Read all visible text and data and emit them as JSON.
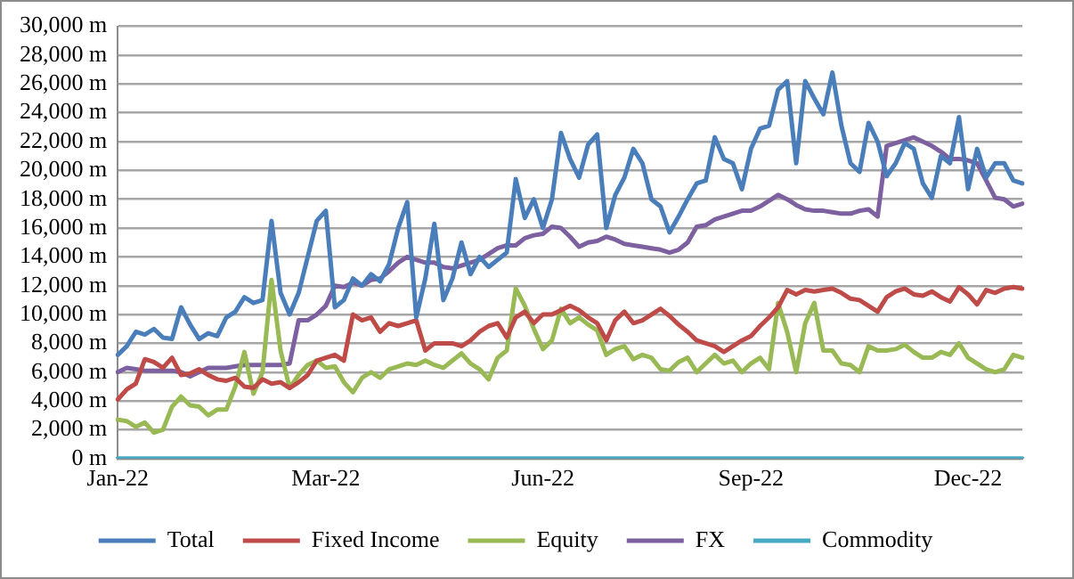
{
  "chart_data": {
    "type": "line",
    "categories": [
      "Jan-22",
      null,
      null,
      null,
      null,
      null,
      null,
      null,
      null,
      null,
      null,
      null,
      null,
      null,
      null,
      null,
      null,
      null,
      null,
      null,
      null,
      null,
      null,
      "Mar-22",
      null,
      null,
      null,
      null,
      null,
      null,
      null,
      null,
      null,
      null,
      null,
      null,
      null,
      null,
      null,
      null,
      null,
      null,
      null,
      null,
      null,
      null,
      null,
      "Jun-22",
      null,
      null,
      null,
      null,
      null,
      null,
      null,
      null,
      null,
      null,
      null,
      null,
      null,
      null,
      null,
      null,
      null,
      null,
      null,
      null,
      null,
      null,
      "Sep-22",
      null,
      null,
      null,
      null,
      null,
      null,
      null,
      null,
      null,
      null,
      null,
      null,
      null,
      null,
      null,
      null,
      null,
      null,
      null,
      null,
      null,
      null,
      null,
      "Dec-22",
      null,
      null,
      null,
      null,
      null,
      null
    ],
    "series": [
      {
        "name": "Total",
        "color": "#4a7ebb",
        "values": [
          7200,
          7800,
          8800,
          8600,
          9000,
          8400,
          8300,
          10500,
          9300,
          8300,
          8700,
          8500,
          9800,
          10200,
          11200,
          10800,
          11000,
          16500,
          11500,
          10000,
          11500,
          14000,
          16500,
          17200,
          10500,
          11000,
          12500,
          12000,
          12800,
          12300,
          13500,
          16000,
          17800,
          9800,
          12500,
          16300,
          11000,
          12500,
          15000,
          12800,
          14000,
          13300,
          13800,
          14300,
          19400,
          16700,
          18000,
          16000,
          18000,
          22600,
          20800,
          19500,
          21800,
          22500,
          16000,
          18300,
          19500,
          21500,
          20500,
          18000,
          17500,
          15700,
          16800,
          18000,
          19100,
          19300,
          22300,
          20800,
          20500,
          18700,
          21500,
          22900,
          23100,
          25600,
          26200,
          20500,
          26200,
          25000,
          23900,
          26800,
          23100,
          20500,
          19900,
          23300,
          22000,
          19600,
          20500,
          21900,
          21500,
          19100,
          18100,
          21000,
          20500,
          23700,
          18700,
          21500,
          19500,
          20500,
          20500,
          19300,
          19100
        ]
      },
      {
        "name": "Fixed Income",
        "color": "#be4b48",
        "values": [
          4100,
          4800,
          5200,
          6900,
          6700,
          6300,
          7000,
          5800,
          5900,
          6200,
          5800,
          5500,
          5400,
          5600,
          5000,
          4900,
          5500,
          5200,
          5300,
          4900,
          5300,
          5800,
          6800,
          7000,
          7200,
          6800,
          10000,
          9600,
          9800,
          8800,
          9400,
          9200,
          9400,
          9600,
          7500,
          8000,
          8000,
          8000,
          7800,
          8200,
          8800,
          9200,
          9400,
          8400,
          9800,
          10200,
          9400,
          10000,
          10000,
          10300,
          10600,
          10300,
          9800,
          9400,
          8200,
          9600,
          10200,
          9400,
          9600,
          10000,
          10400,
          9900,
          9300,
          8800,
          8200,
          8000,
          7800,
          7400,
          7800,
          8200,
          8500,
          9200,
          9800,
          10500,
          11700,
          11400,
          11700,
          11600,
          11700,
          11800,
          11500,
          11100,
          11000,
          10600,
          10200,
          11200,
          11600,
          11800,
          11400,
          11300,
          11600,
          11200,
          10900,
          11900,
          11400,
          10700,
          11700,
          11500,
          11800,
          11900,
          11800
        ]
      },
      {
        "name": "Equity",
        "color": "#98b954",
        "values": [
          2700,
          2600,
          2200,
          2500,
          1800,
          2000,
          3600,
          4300,
          3700,
          3600,
          3000,
          3400,
          3400,
          5000,
          7400,
          4500,
          6000,
          12400,
          7500,
          4900,
          5800,
          6500,
          6800,
          6300,
          6400,
          5300,
          4600,
          5600,
          6000,
          5600,
          6200,
          6400,
          6600,
          6500,
          6800,
          6500,
          6300,
          6800,
          7300,
          6600,
          6200,
          5500,
          7000,
          7500,
          11800,
          10600,
          9000,
          7600,
          8200,
          10400,
          9400,
          9800,
          9300,
          8900,
          7200,
          7600,
          7800,
          6900,
          7200,
          7000,
          6200,
          6100,
          6700,
          7000,
          6000,
          6600,
          7200,
          6600,
          6800,
          6000,
          6600,
          7000,
          6200,
          10800,
          8800,
          6000,
          9400,
          10800,
          7500,
          7500,
          6600,
          6500,
          6000,
          7800,
          7500,
          7500,
          7600,
          7900,
          7400,
          7000,
          7000,
          7400,
          7200,
          8000,
          7000,
          6600,
          6200,
          6000,
          6200,
          7200,
          7000
        ]
      },
      {
        "name": "FX",
        "color": "#7d60a0",
        "values": [
          6000,
          6300,
          6200,
          6100,
          6100,
          6100,
          6100,
          6000,
          5700,
          6000,
          6300,
          6300,
          6300,
          6400,
          6500,
          6500,
          6500,
          6500,
          6500,
          6600,
          9600,
          9600,
          10000,
          10600,
          12000,
          11900,
          12200,
          12000,
          12400,
          12500,
          13000,
          13600,
          14000,
          13800,
          13600,
          13600,
          13300,
          13200,
          13400,
          13600,
          13800,
          14200,
          14600,
          14800,
          14800,
          15300,
          15500,
          15600,
          16100,
          16000,
          15400,
          14700,
          15000,
          15100,
          15400,
          15200,
          14900,
          14800,
          14700,
          14600,
          14500,
          14300,
          14500,
          15000,
          16100,
          16200,
          16600,
          16800,
          17000,
          17200,
          17200,
          17500,
          17900,
          18300,
          18000,
          17600,
          17300,
          17200,
          17200,
          17100,
          17000,
          17000,
          17200,
          17300,
          16800,
          21700,
          21900,
          22100,
          22300,
          22000,
          21700,
          21300,
          20800,
          20800,
          20700,
          20500,
          19300,
          18100,
          18000,
          17500,
          17700
        ]
      },
      {
        "name": "Commodity",
        "color": "#46aac5",
        "values": [
          0,
          0,
          0,
          0,
          0,
          0,
          0,
          0,
          0,
          0,
          0,
          0,
          0,
          0,
          0,
          0,
          0,
          0,
          0,
          0,
          0,
          0,
          0,
          0,
          0,
          0,
          0,
          0,
          0,
          0,
          0,
          0,
          0,
          0,
          0,
          0,
          0,
          0,
          0,
          0,
          0,
          0,
          0,
          0,
          0,
          0,
          0,
          0,
          0,
          0,
          0,
          0,
          0,
          0,
          0,
          0,
          0,
          0,
          0,
          0,
          0,
          0,
          0,
          0,
          0,
          0,
          0,
          0,
          0,
          0,
          0,
          0,
          0,
          0,
          0,
          0,
          0,
          0,
          0,
          0,
          0,
          0,
          0,
          0,
          0,
          0,
          0,
          0,
          0,
          0,
          0,
          0,
          0,
          0,
          0,
          0,
          0,
          0,
          0,
          0,
          0
        ]
      }
    ],
    "ylim": [
      0,
      30000
    ],
    "yticks": [
      {
        "value": 0,
        "label": "0 m"
      },
      {
        "value": 2000,
        "label": "2,000 m"
      },
      {
        "value": 4000,
        "label": "4,000 m"
      },
      {
        "value": 6000,
        "label": "6,000 m"
      },
      {
        "value": 8000,
        "label": "8,000 m"
      },
      {
        "value": 10000,
        "label": "10,000 m"
      },
      {
        "value": 12000,
        "label": "12,000 m"
      },
      {
        "value": 14000,
        "label": "14,000 m"
      },
      {
        "value": 16000,
        "label": "16,000 m"
      },
      {
        "value": 18000,
        "label": "18,000 m"
      },
      {
        "value": 20000,
        "label": "20,000 m"
      },
      {
        "value": 22000,
        "label": "22,000 m"
      },
      {
        "value": 24000,
        "label": "24,000 m"
      },
      {
        "value": 26000,
        "label": "26,000 m"
      },
      {
        "value": 28000,
        "label": "28,000 m"
      },
      {
        "value": 30000,
        "label": "30,000 m"
      }
    ],
    "grid": "y",
    "legend": "bottom"
  }
}
